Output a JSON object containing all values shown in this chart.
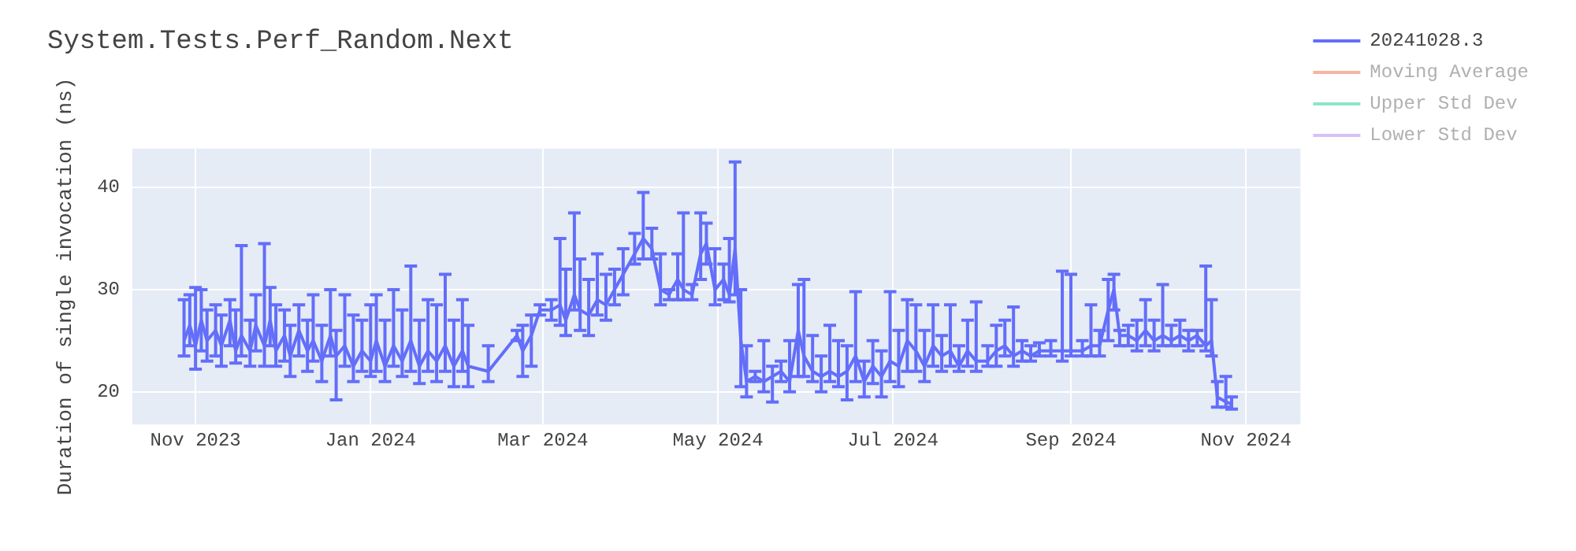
{
  "chart_data": {
    "type": "line",
    "title": "System.Tests.Perf_Random.Next",
    "ylabel": "Duration of single invocation (ns)",
    "x": [
      "2023-10-28",
      "2023-10-30",
      "2023-11-01",
      "2023-11-03",
      "2023-11-05",
      "2023-11-08",
      "2023-11-10",
      "2023-11-13",
      "2023-11-15",
      "2023-11-17",
      "2023-11-20",
      "2023-11-22",
      "2023-11-25",
      "2023-11-27",
      "2023-11-29",
      "2023-12-02",
      "2023-12-04",
      "2023-12-07",
      "2023-12-10",
      "2023-12-12",
      "2023-12-15",
      "2023-12-18",
      "2023-12-20",
      "2023-12-23",
      "2023-12-26",
      "2023-12-29",
      "2024-01-01",
      "2024-01-03",
      "2024-01-06",
      "2024-01-09",
      "2024-01-12",
      "2024-01-15",
      "2024-01-18",
      "2024-01-21",
      "2024-01-24",
      "2024-01-27",
      "2024-01-30",
      "2024-02-02",
      "2024-02-04",
      "2024-02-11",
      "2024-02-21",
      "2024-02-23",
      "2024-02-26",
      "2024-02-29",
      "2024-03-04",
      "2024-03-07",
      "2024-03-09",
      "2024-03-12",
      "2024-03-14",
      "2024-03-17",
      "2024-03-20",
      "2024-03-23",
      "2024-03-26",
      "2024-03-29",
      "2024-04-02",
      "2024-04-05",
      "2024-04-08",
      "2024-04-11",
      "2024-04-14",
      "2024-04-17",
      "2024-04-19",
      "2024-04-22",
      "2024-04-25",
      "2024-04-27",
      "2024-04-30",
      "2024-05-03",
      "2024-05-05",
      "2024-05-07",
      "2024-05-09",
      "2024-05-11",
      "2024-05-14",
      "2024-05-17",
      "2024-05-20",
      "2024-05-23",
      "2024-05-26",
      "2024-05-29",
      "2024-05-31",
      "2024-06-03",
      "2024-06-06",
      "2024-06-09",
      "2024-06-12",
      "2024-06-15",
      "2024-06-18",
      "2024-06-21",
      "2024-06-24",
      "2024-06-27",
      "2024-06-30",
      "2024-07-03",
      "2024-07-06",
      "2024-07-09",
      "2024-07-12",
      "2024-07-15",
      "2024-07-18",
      "2024-07-21",
      "2024-07-24",
      "2024-07-27",
      "2024-07-30",
      "2024-08-03",
      "2024-08-06",
      "2024-08-09",
      "2024-08-12",
      "2024-08-15",
      "2024-08-18",
      "2024-08-21",
      "2024-08-25",
      "2024-08-29",
      "2024-09-01",
      "2024-09-05",
      "2024-09-08",
      "2024-09-11",
      "2024-09-14",
      "2024-09-16",
      "2024-09-18",
      "2024-09-21",
      "2024-09-24",
      "2024-09-27",
      "2024-09-30",
      "2024-10-03",
      "2024-10-06",
      "2024-10-09",
      "2024-10-12",
      "2024-10-15",
      "2024-10-18",
      "2024-10-20",
      "2024-10-22",
      "2024-10-25",
      "2024-10-27"
    ],
    "series": [
      {
        "name": "20241028.3",
        "color": "#636efa",
        "values": [
          25,
          26.5,
          24.5,
          27,
          25,
          26,
          24.5,
          27,
          24,
          25.5,
          24,
          26.5,
          24.5,
          27,
          24,
          25.5,
          23.5,
          26,
          24,
          25,
          23,
          25.5,
          23.5,
          24.5,
          22.5,
          24,
          23,
          25,
          22.5,
          24.5,
          23,
          25,
          22.5,
          24,
          23,
          24.5,
          22.5,
          24,
          22.5,
          22,
          25.5,
          24,
          25.5,
          28,
          28,
          28.5,
          27,
          29.5,
          28,
          27.5,
          29,
          28.5,
          30,
          31.5,
          33.5,
          35,
          34,
          30,
          29.5,
          31,
          30,
          29.5,
          33.5,
          34.5,
          30,
          31,
          29.5,
          34,
          25,
          21,
          21.5,
          21,
          21.5,
          22,
          21,
          26,
          23.5,
          22,
          21.5,
          22,
          21.5,
          22,
          23.5,
          21,
          22.5,
          21.5,
          23,
          22.5,
          25,
          24,
          22.5,
          24.5,
          23.5,
          24,
          22.5,
          24,
          23,
          23,
          24,
          24.5,
          23.5,
          24,
          23.5,
          24,
          24,
          24,
          24,
          24,
          24.5,
          24.5,
          28,
          30,
          25.5,
          25.5,
          25,
          26,
          25,
          25.5,
          25,
          25.5,
          25,
          25.5,
          24.5,
          25,
          19.5,
          19,
          18.8
        ],
        "errors": [
          [
            23.5,
            29
          ],
          [
            24.5,
            29.5
          ],
          [
            22.2,
            30.2
          ],
          [
            24,
            30
          ],
          [
            23,
            28
          ],
          [
            23.5,
            28.5
          ],
          [
            22.5,
            27.5
          ],
          [
            24.5,
            29
          ],
          [
            22.8,
            28
          ],
          [
            23.5,
            34.3
          ],
          [
            22.5,
            27
          ],
          [
            24,
            29.5
          ],
          [
            22.5,
            34.5
          ],
          [
            24.5,
            30.2
          ],
          [
            22.5,
            28.5
          ],
          [
            23,
            28
          ],
          [
            21.5,
            26.5
          ],
          [
            23.5,
            28.5
          ],
          [
            22,
            27
          ],
          [
            23,
            29.5
          ],
          [
            21,
            26.5
          ],
          [
            23.5,
            30
          ],
          [
            19.2,
            26
          ],
          [
            22.5,
            29.5
          ],
          [
            21,
            27.5
          ],
          [
            22,
            27
          ],
          [
            21.5,
            28.5
          ],
          [
            22,
            29.5
          ],
          [
            21,
            27
          ],
          [
            22.5,
            30
          ],
          [
            21.5,
            28
          ],
          [
            22,
            32.3
          ],
          [
            20.8,
            27
          ],
          [
            22,
            29
          ],
          [
            21,
            28.5
          ],
          [
            22,
            31.5
          ],
          [
            20.5,
            27
          ],
          [
            22,
            29
          ],
          [
            20.5,
            26.5
          ],
          [
            21,
            24.5
          ],
          [
            25,
            26
          ],
          [
            21.5,
            26.5
          ],
          [
            22.5,
            27.5
          ],
          [
            27.5,
            28.5
          ],
          [
            27,
            29
          ],
          [
            26.5,
            35
          ],
          [
            25.5,
            32
          ],
          [
            28,
            37.5
          ],
          [
            26,
            33
          ],
          [
            25.5,
            31
          ],
          [
            27.5,
            33.5
          ],
          [
            27,
            31.5
          ],
          [
            28.5,
            32
          ],
          [
            29.5,
            34
          ],
          [
            32.5,
            35.5
          ],
          [
            33,
            39.5
          ],
          [
            33,
            36
          ],
          [
            28.5,
            33.5
          ],
          [
            29,
            30
          ],
          [
            29,
            33.5
          ],
          [
            29,
            37.5
          ],
          [
            29,
            30.5
          ],
          [
            31,
            37.5
          ],
          [
            32.5,
            36.5
          ],
          [
            28.5,
            34
          ],
          [
            29,
            32.5
          ],
          [
            28.8,
            35
          ],
          [
            29.5,
            42.5
          ],
          [
            20.5,
            30
          ],
          [
            19.5,
            24.5
          ],
          [
            21,
            22
          ],
          [
            20,
            25
          ],
          [
            19,
            22.5
          ],
          [
            21,
            23
          ],
          [
            20,
            25
          ],
          [
            21.5,
            30.5
          ],
          [
            21.5,
            31
          ],
          [
            21,
            25.5
          ],
          [
            20,
            23.5
          ],
          [
            21,
            26.5
          ],
          [
            20.5,
            25
          ],
          [
            19.2,
            24.5
          ],
          [
            21,
            29.8
          ],
          [
            19.5,
            23
          ],
          [
            20.8,
            25
          ],
          [
            19.5,
            24
          ],
          [
            21,
            29.8
          ],
          [
            20.5,
            26
          ],
          [
            22,
            29
          ],
          [
            22,
            28.5
          ],
          [
            21,
            26
          ],
          [
            22.5,
            28.5
          ],
          [
            22,
            25.5
          ],
          [
            22.5,
            28.5
          ],
          [
            22,
            24.5
          ],
          [
            22.5,
            27
          ],
          [
            22,
            28.8
          ],
          [
            22.5,
            24.5
          ],
          [
            22.5,
            26.5
          ],
          [
            23.5,
            27
          ],
          [
            22.5,
            28.3
          ],
          [
            23,
            25
          ],
          [
            23,
            24.5
          ],
          [
            23.5,
            24.8
          ],
          [
            23.5,
            25
          ],
          [
            23,
            31.8
          ],
          [
            23.5,
            31.5
          ],
          [
            23.5,
            25
          ],
          [
            23.5,
            28.5
          ],
          [
            23.5,
            26
          ],
          [
            25,
            31
          ],
          [
            28,
            31.5
          ],
          [
            24.5,
            26
          ],
          [
            24.5,
            26.5
          ],
          [
            24,
            27
          ],
          [
            24.5,
            29
          ],
          [
            24,
            27
          ],
          [
            24.5,
            30.5
          ],
          [
            24.5,
            26.5
          ],
          [
            24.5,
            27
          ],
          [
            24,
            26
          ],
          [
            24.5,
            26
          ],
          [
            24,
            32.3
          ],
          [
            23.5,
            29
          ],
          [
            18.5,
            21
          ],
          [
            18.5,
            21.5
          ],
          [
            18.3,
            19.5
          ]
        ]
      },
      {
        "name": "Moving Average",
        "color": "#f8b4a0",
        "values": [
          null,
          null,
          null,
          null,
          null,
          null,
          null,
          null,
          null,
          null,
          null,
          null,
          null,
          null,
          null,
          null,
          null,
          null,
          null,
          null,
          null,
          null,
          null,
          null,
          null,
          null,
          null,
          null,
          null,
          null,
          null,
          null,
          null,
          null,
          null,
          null,
          null,
          null,
          null,
          null,
          null,
          null,
          null,
          null,
          null,
          null,
          null,
          null,
          null,
          null,
          null,
          null,
          null,
          null,
          null,
          null,
          null,
          null,
          null,
          null,
          null,
          null,
          null,
          null,
          null,
          null,
          null,
          null,
          null,
          null,
          null,
          null,
          null,
          null,
          null,
          null,
          null,
          null,
          null,
          null,
          null,
          null,
          null,
          null,
          null,
          null,
          null,
          null,
          null,
          null,
          null,
          null,
          null,
          null,
          null,
          null,
          null,
          null,
          null,
          null,
          null,
          null,
          null,
          null,
          null,
          null,
          null,
          null,
          null,
          null,
          null,
          null,
          null,
          null,
          null,
          null,
          null,
          null,
          null,
          null,
          null,
          null,
          null,
          null,
          null,
          null,
          null
        ]
      },
      {
        "name": "Upper Std Dev",
        "color": "#8ee6c4",
        "values": [
          null,
          null,
          null,
          null,
          null,
          null,
          null,
          null,
          null,
          null,
          null,
          null,
          null,
          null,
          null,
          null,
          null,
          null,
          null,
          null,
          null,
          null,
          null,
          null,
          null,
          null,
          null,
          null,
          null,
          null,
          null,
          null,
          null,
          null,
          null,
          null,
          null,
          null,
          null,
          null,
          null,
          null,
          null,
          null,
          null,
          null,
          null,
          null,
          null,
          null,
          null,
          null,
          null,
          null,
          null,
          null,
          null,
          null,
          null,
          null,
          null,
          null,
          null,
          null,
          null,
          null,
          null,
          null,
          null,
          null,
          null,
          null,
          null,
          null,
          null,
          null,
          null,
          null,
          null,
          null,
          null,
          null,
          null,
          null,
          null,
          null,
          null,
          null,
          null,
          null,
          null,
          null,
          null,
          null,
          null,
          null,
          null,
          null,
          null,
          null,
          null,
          null,
          null,
          null,
          null,
          null,
          null,
          null,
          null,
          null,
          null,
          null,
          null,
          null,
          null,
          null,
          null,
          null,
          null,
          null,
          null,
          null,
          null,
          null,
          null,
          null,
          null
        ]
      },
      {
        "name": "Lower Std Dev",
        "color": "#d5c2f9",
        "values": [
          null,
          null,
          null,
          null,
          null,
          null,
          null,
          null,
          null,
          null,
          null,
          null,
          null,
          null,
          null,
          null,
          null,
          null,
          null,
          null,
          null,
          null,
          null,
          null,
          null,
          null,
          null,
          null,
          null,
          null,
          null,
          null,
          null,
          null,
          null,
          null,
          null,
          null,
          null,
          null,
          null,
          null,
          null,
          null,
          null,
          null,
          null,
          null,
          null,
          null,
          null,
          null,
          null,
          null,
          null,
          null,
          null,
          null,
          null,
          null,
          null,
          null,
          null,
          null,
          null,
          null,
          null,
          null,
          null,
          null,
          null,
          null,
          null,
          null,
          null,
          null,
          null,
          null,
          null,
          null,
          null,
          null,
          null,
          null,
          null,
          null,
          null,
          null,
          null,
          null,
          null,
          null,
          null,
          null,
          null,
          null,
          null,
          null,
          null,
          null,
          null,
          null,
          null,
          null,
          null,
          null,
          null,
          null,
          null,
          null,
          null,
          null,
          null,
          null,
          null,
          null,
          null,
          null,
          null,
          null,
          null,
          null,
          null,
          null,
          null,
          null,
          null
        ]
      }
    ],
    "xlim": [
      "2023-10-10",
      "2024-11-20"
    ],
    "xticks": [
      {
        "value": "2023-11-01",
        "label": "Nov 2023"
      },
      {
        "value": "2024-01-01",
        "label": "Jan 2024"
      },
      {
        "value": "2024-03-01",
        "label": "Mar 2024"
      },
      {
        "value": "2024-05-01",
        "label": "May 2024"
      },
      {
        "value": "2024-07-01",
        "label": "Jul 2024"
      },
      {
        "value": "2024-09-01",
        "label": "Sep 2024"
      },
      {
        "value": "2024-11-01",
        "label": "Nov 2024"
      }
    ],
    "ylim": [
      16.8,
      43.8
    ],
    "yticks": [
      20,
      30,
      40
    ],
    "grid": true,
    "legend": "right",
    "marker": "none",
    "line_style": "solid"
  }
}
